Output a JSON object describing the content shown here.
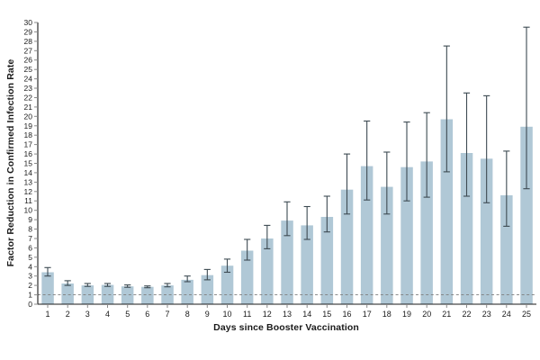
{
  "chart_data": {
    "type": "bar",
    "title": "",
    "xlabel": "Days since Booster Vaccination",
    "ylabel": "Factor Reduction in Confirmed Infection Rate",
    "categories": [
      "1",
      "2",
      "3",
      "4",
      "5",
      "6",
      "7",
      "8",
      "9",
      "10",
      "11",
      "12",
      "13",
      "14",
      "15",
      "16",
      "17",
      "18",
      "19",
      "20",
      "21",
      "22",
      "23",
      "24",
      "25"
    ],
    "values": [
      3.4,
      2.2,
      2.0,
      2.05,
      1.9,
      1.85,
      2.0,
      2.6,
      3.1,
      4.1,
      5.7,
      7.0,
      8.9,
      8.4,
      9.3,
      12.2,
      14.7,
      12.5,
      14.6,
      15.2,
      19.7,
      16.1,
      15.5,
      11.6,
      18.9
    ],
    "error_low": [
      3.0,
      2.0,
      1.9,
      1.9,
      1.8,
      1.75,
      1.85,
      2.4,
      2.6,
      3.4,
      4.7,
      5.9,
      7.3,
      6.9,
      7.7,
      9.6,
      11.1,
      9.6,
      11.0,
      11.4,
      14.1,
      11.5,
      10.8,
      8.3,
      12.3
    ],
    "error_high": [
      3.9,
      2.5,
      2.2,
      2.2,
      2.05,
      1.95,
      2.2,
      3.0,
      3.7,
      4.8,
      6.9,
      8.4,
      10.9,
      10.4,
      11.5,
      16.0,
      19.5,
      16.2,
      19.4,
      20.4,
      27.5,
      22.5,
      22.2,
      16.3,
      29.5
    ],
    "ylim": [
      0,
      30
    ],
    "yticks": [
      0,
      1,
      2,
      3,
      4,
      5,
      6,
      7,
      8,
      9,
      10,
      11,
      12,
      13,
      14,
      15,
      16,
      17,
      18,
      19,
      20,
      21,
      22,
      23,
      24,
      25,
      26,
      27,
      28,
      29,
      30
    ],
    "reference_line_y": 1,
    "grid": false,
    "legend": false,
    "bar_color": "#b0c8d6",
    "error_bar_color": "#3d4a52",
    "axis_color": "#1a1a1a",
    "tick_color": "#8a8a8a",
    "reference_line_color": "#7d7d7d",
    "tick_label_color": "#1a1a1a"
  }
}
